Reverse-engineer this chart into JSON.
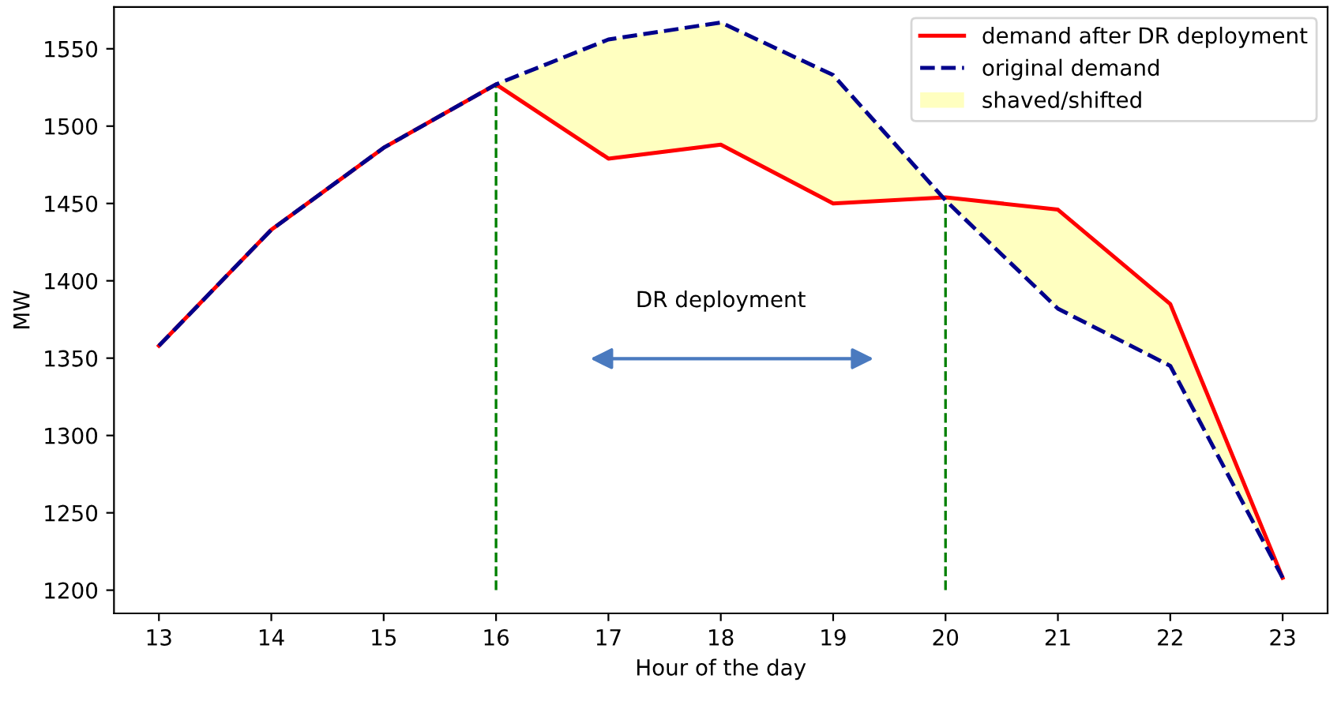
{
  "chart_data": {
    "type": "line",
    "xlabel": "Hour of the day",
    "ylabel": "MW",
    "x": [
      13,
      14,
      15,
      16,
      17,
      18,
      19,
      20,
      21,
      22,
      23
    ],
    "series": [
      {
        "name": "demand after DR deployment",
        "color": "#ff0000",
        "line_style": "solid",
        "values": [
          1358,
          1433,
          1486,
          1527,
          1479,
          1488,
          1450,
          1454,
          1446,
          1385,
          1208
        ]
      },
      {
        "name": "original demand",
        "color": "#00008b",
        "line_style": "dashed",
        "values": [
          1358,
          1433,
          1486,
          1527,
          1556,
          1567,
          1533,
          1452,
          1382,
          1345,
          1208
        ]
      },
      {
        "name": "shaved/shifted",
        "type": "area",
        "color": "#ffffc0",
        "x": [
          16,
          17,
          18,
          19,
          20,
          21,
          22,
          23
        ],
        "values": [
          1527,
          1556,
          1567,
          1533,
          1452,
          1382,
          1345,
          1208
        ]
      }
    ],
    "ref_lines": [
      {
        "axis": "x",
        "value": 16,
        "color": "#008000",
        "line_style": "dashed"
      },
      {
        "axis": "x",
        "value": 20,
        "color": "#008000",
        "line_style": "dashed"
      }
    ],
    "annotations": [
      "DR deployment"
    ],
    "xlim": [
      12.6,
      23.4
    ],
    "ylim": [
      1185,
      1577
    ],
    "xticks": [
      13,
      14,
      15,
      16,
      17,
      18,
      19,
      20,
      21,
      22,
      23
    ],
    "yticks": [
      1200,
      1250,
      1300,
      1350,
      1400,
      1450,
      1500,
      1550
    ],
    "grid": false,
    "legend": "top right",
    "marker": "none"
  }
}
